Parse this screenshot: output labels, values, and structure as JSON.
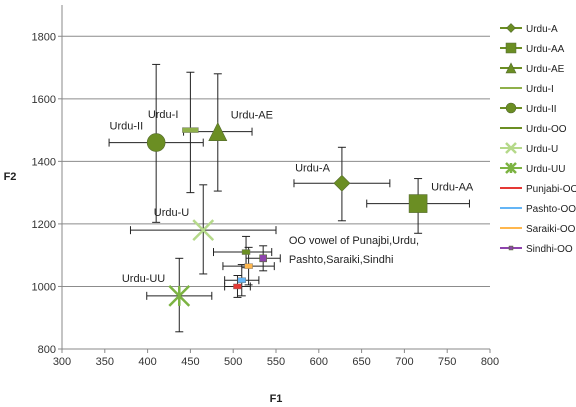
{
  "chart_data": {
    "type": "scatter",
    "title": "",
    "xlabel": "F1",
    "ylabel": "F2",
    "xlim": [
      300,
      800
    ],
    "ylim": [
      800,
      1900
    ],
    "xticks": [
      "300",
      "350",
      "400",
      "450",
      "500",
      "550",
      "600",
      "650",
      "700",
      "750",
      "800"
    ],
    "yticks": [
      "800",
      "1000",
      "1200",
      "1400",
      "1600",
      "1800"
    ],
    "grid": "horizontal",
    "legend_position": "right",
    "series": [
      {
        "name": "Urdu-A",
        "color": "#6b8e23",
        "marker": "diamond",
        "size": 16,
        "x": 627,
        "y": 1330,
        "xerr": [
          56,
          56
        ],
        "yerr": [
          120,
          115
        ],
        "label": "Urdu-A",
        "label_anchor": "end"
      },
      {
        "name": "Urdu-AA",
        "color": "#6b8e23",
        "marker": "square",
        "size": 18,
        "x": 716,
        "y": 1265,
        "xerr": [
          60,
          60
        ],
        "yerr": [
          95,
          80
        ],
        "label": "Urdu-AA",
        "label_anchor": "start"
      },
      {
        "name": "Urdu-AE",
        "color": "#6b8e23",
        "marker": "triangle",
        "size": 18,
        "x": 482,
        "y": 1495,
        "xerr": [
          40,
          40
        ],
        "yerr": [
          190,
          185
        ],
        "label": "Urdu-AE",
        "label_anchor": "start"
      },
      {
        "name": "Urdu-I",
        "color": "#8fb04a",
        "marker": "dash",
        "size": 16,
        "x": 450,
        "y": 1500,
        "xerr": [
          0,
          0
        ],
        "yerr": [
          200,
          185
        ],
        "label": "Urdu-I",
        "label_anchor": "end"
      },
      {
        "name": "Urdu-II",
        "color": "#6b8e23",
        "marker": "circle",
        "size": 18,
        "x": 410,
        "y": 1460,
        "xerr": [
          55,
          55
        ],
        "yerr": [
          255,
          250
        ],
        "label": "Urdu-II",
        "label_anchor": "end"
      },
      {
        "name": "Urdu-OO",
        "color": "#6b8e23",
        "marker": "dash",
        "size": 8,
        "x": 515,
        "y": 1110,
        "xerr": [
          38,
          30
        ],
        "yerr": [
          50,
          50
        ],
        "label": "",
        "label_anchor": "start"
      },
      {
        "name": "Urdu-U",
        "color": "#b5d98a",
        "marker": "x",
        "size": 20,
        "x": 465,
        "y": 1180,
        "xerr": [
          85,
          85
        ],
        "yerr": [
          140,
          145
        ],
        "label": "Urdu-U",
        "label_anchor": "end"
      },
      {
        "name": "Urdu-UU",
        "color": "#7cb342",
        "marker": "star",
        "size": 20,
        "x": 437,
        "y": 970,
        "xerr": [
          38,
          38
        ],
        "yerr": [
          115,
          120
        ],
        "label": "Urdu-UU",
        "label_anchor": "end"
      },
      {
        "name": "Punjabi-OO",
        "color": "#e53935",
        "marker": "dash",
        "size": 8,
        "x": 505,
        "y": 1000,
        "xerr": [
          15,
          15
        ],
        "yerr": [
          35,
          35
        ],
        "label": "",
        "label_anchor": "start"
      },
      {
        "name": "Pashto-OO",
        "color": "#64b5f6",
        "marker": "dash",
        "size": 8,
        "x": 510,
        "y": 1020,
        "xerr": [
          20,
          20
        ],
        "yerr": [
          50,
          50
        ],
        "label": "",
        "label_anchor": "start"
      },
      {
        "name": "Saraiki-OO",
        "color": "#ffb74d",
        "marker": "dash",
        "size": 8,
        "x": 518,
        "y": 1065,
        "xerr": [
          30,
          30
        ],
        "yerr": [
          60,
          60
        ],
        "label": "",
        "label_anchor": "start"
      },
      {
        "name": "Sindhi-OO",
        "color": "#8e44ad",
        "marker": "square",
        "size": 7,
        "x": 535,
        "y": 1090,
        "xerr": [
          20,
          20
        ],
        "yerr": [
          40,
          40
        ],
        "label": "",
        "label_anchor": "start"
      }
    ],
    "annotations": [
      {
        "text": "OO vowel of Punajbi,Urdu,",
        "x": 565,
        "y": 1135
      },
      {
        "text": "Pashto,Saraiki,Sindhi",
        "x": 565,
        "y": 1075
      }
    ]
  }
}
